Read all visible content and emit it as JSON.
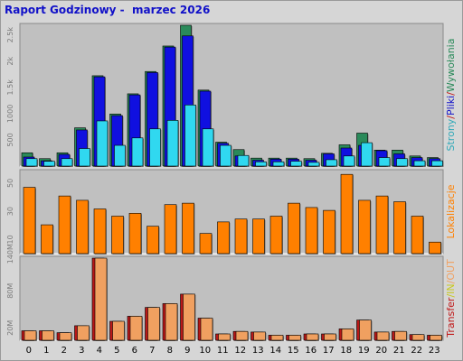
{
  "title": "Raport Godzinowy -  marzec 2026",
  "colors": {
    "frame_bg": "#d6d6d6",
    "plot_bg": "#c0c0c0",
    "title": "#1010c8",
    "hits": "#2a8a5a",
    "files": "#1010e0",
    "pages": "#30d8f0",
    "sites": "#ff8000",
    "transfer_in": "#b81818",
    "transfer_out": "#f0a060",
    "label_strony": "#2fa8b8",
    "label_pliki": "#1010c8",
    "label_wywolania": "#2a8a5a",
    "label_lokalizacje": "#ff8000",
    "label_transfer": "#c01818",
    "label_in": "#c8c820",
    "label_out": "#f0a060",
    "label_sep": "#c01818"
  },
  "chart_data": [
    {
      "type": "bar",
      "name": "top",
      "categories": [
        "0",
        "1",
        "2",
        "3",
        "4",
        "5",
        "6",
        "7",
        "8",
        "9",
        "10",
        "11",
        "12",
        "13",
        "14",
        "15",
        "16",
        "17",
        "18",
        "19",
        "20",
        "21",
        "22",
        "23"
      ],
      "series": [
        {
          "name": "Wywołania",
          "values": [
            250,
            140,
            250,
            720,
            1700,
            980,
            1360,
            1780,
            2260,
            2650,
            1430,
            450,
            310,
            150,
            150,
            150,
            140,
            240,
            400,
            620,
            300,
            300,
            190,
            160
          ]
        },
        {
          "name": "Pliki",
          "values": [
            170,
            100,
            220,
            680,
            1680,
            950,
            1340,
            1760,
            2240,
            2450,
            1410,
            430,
            190,
            110,
            130,
            130,
            110,
            230,
            340,
            390,
            290,
            230,
            160,
            140
          ]
        },
        {
          "name": "Strony",
          "values": [
            140,
            90,
            140,
            330,
            850,
            390,
            530,
            700,
            860,
            1150,
            700,
            390,
            200,
            80,
            80,
            90,
            70,
            120,
            190,
            440,
            160,
            140,
            100,
            100
          ]
        }
      ],
      "yticks": [
        "500",
        "1000",
        "1.5k",
        "2k",
        "2.5k"
      ],
      "ylim": [
        0,
        2650
      ],
      "ylabel_parts": [
        "Strony",
        "/",
        "Pliki",
        "/",
        "Wywołania"
      ]
    },
    {
      "type": "bar",
      "name": "middle",
      "categories": [
        "0",
        "1",
        "2",
        "3",
        "4",
        "5",
        "6",
        "7",
        "8",
        "9",
        "10",
        "11",
        "12",
        "13",
        "14",
        "15",
        "16",
        "17",
        "18",
        "19",
        "20",
        "21",
        "22",
        "23"
      ],
      "series": [
        {
          "name": "Lokalizacje",
          "values": [
            46,
            20,
            40,
            37,
            31,
            26,
            28,
            19,
            34,
            35,
            14,
            22,
            24,
            24,
            26,
            35,
            32,
            30,
            55,
            37,
            40,
            36,
            26,
            8
          ]
        }
      ],
      "yticks": [
        "10",
        "30",
        "50"
      ],
      "ylim": [
        0,
        57
      ],
      "ylabel_parts": [
        "Lokalizacje"
      ]
    },
    {
      "type": "bar",
      "name": "bottom",
      "categories": [
        "0",
        "1",
        "2",
        "3",
        "4",
        "5",
        "6",
        "7",
        "8",
        "9",
        "10",
        "11",
        "12",
        "13",
        "14",
        "15",
        "16",
        "17",
        "18",
        "19",
        "20",
        "21",
        "22",
        "23"
      ],
      "series": [
        {
          "name": "IN",
          "values": [
            15,
            15,
            12,
            23,
            130,
            30,
            38,
            52,
            58,
            73,
            35,
            10,
            14,
            13,
            8,
            8,
            10,
            10,
            18,
            32,
            13,
            14,
            9,
            8
          ]
        },
        {
          "name": "OUT",
          "values": [
            15,
            15,
            12,
            23,
            130,
            30,
            38,
            52,
            58,
            73,
            35,
            10,
            14,
            13,
            8,
            8,
            10,
            10,
            18,
            32,
            13,
            14,
            9,
            8
          ]
        }
      ],
      "yticks": [
        "20M",
        "80M",
        "140M"
      ],
      "yticks_values": [
        20,
        80,
        140
      ],
      "ylim": [
        0,
        130
      ],
      "ylabel_parts": [
        "Transfer",
        "/IN",
        "/OUT"
      ]
    }
  ]
}
